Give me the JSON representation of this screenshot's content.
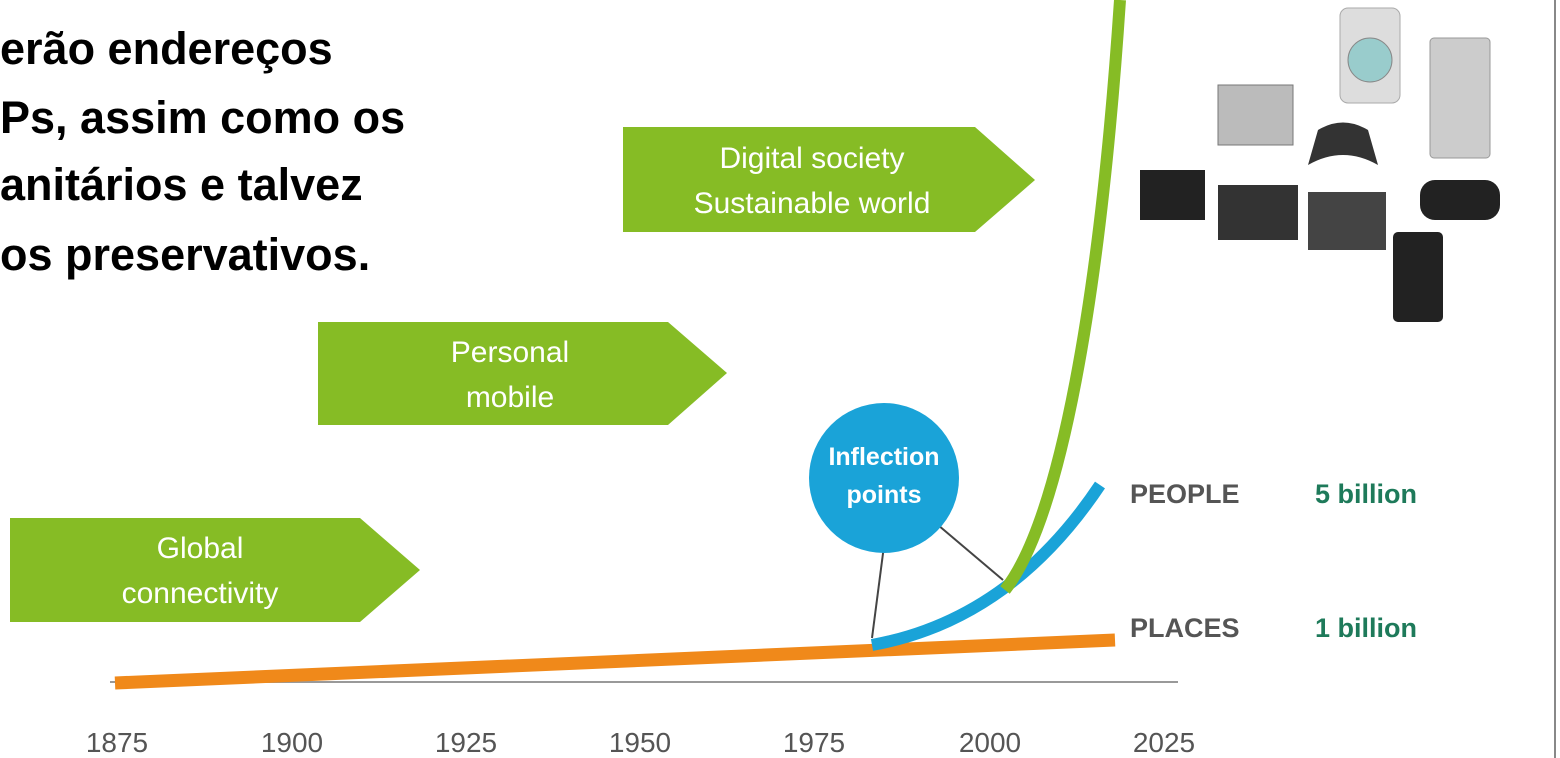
{
  "heading_lines": [
    "erão endereços",
    "Ps, assim como os",
    "anitários e talvez",
    "os preservativos."
  ],
  "stages": [
    {
      "lines": [
        "Digital society",
        "Sustainable world"
      ]
    },
    {
      "lines": [
        "Personal",
        "mobile"
      ]
    },
    {
      "lines": [
        "Global",
        "connectivity"
      ]
    }
  ],
  "inflection": {
    "lines": [
      "Inflection",
      "points"
    ]
  },
  "legend": [
    {
      "name": "PEOPLE",
      "value": "5 billion"
    },
    {
      "name": "PLACES",
      "value": "1 billion"
    }
  ],
  "x_axis": [
    "1875",
    "1900",
    "1925",
    "1950",
    "1975",
    "2000",
    "2025"
  ]
}
